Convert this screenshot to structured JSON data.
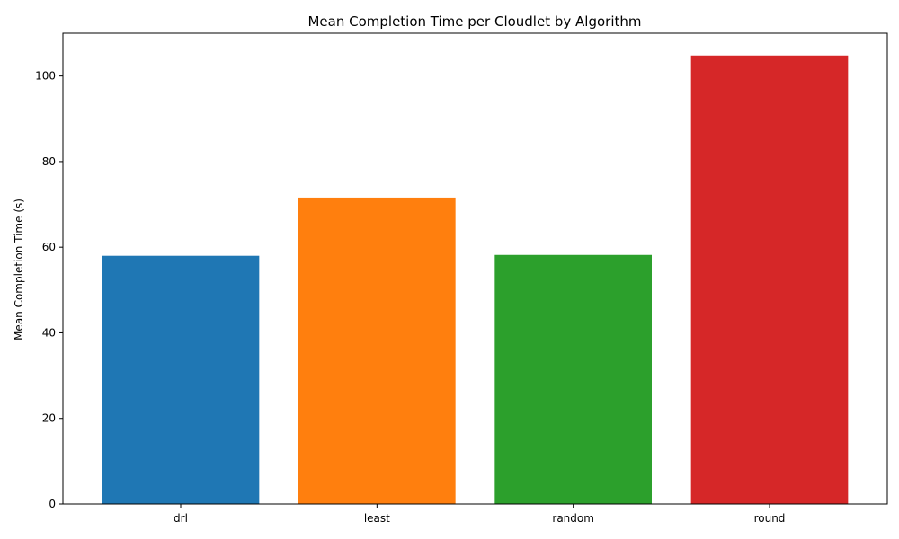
{
  "chart_data": {
    "type": "bar",
    "title": "Mean Completion Time per Cloudlet by Algorithm",
    "xlabel": "",
    "ylabel": "Mean Completion Time (s)",
    "categories": [
      "drl",
      "least",
      "random",
      "round"
    ],
    "values": [
      58.0,
      71.6,
      58.2,
      104.8
    ],
    "colors": [
      "#1f77b4",
      "#ff7f0e",
      "#2ca02c",
      "#d62728"
    ],
    "ylim": [
      0,
      110
    ],
    "yticks": [
      0,
      20,
      40,
      60,
      80,
      100
    ],
    "grid": false,
    "legend": "none"
  }
}
